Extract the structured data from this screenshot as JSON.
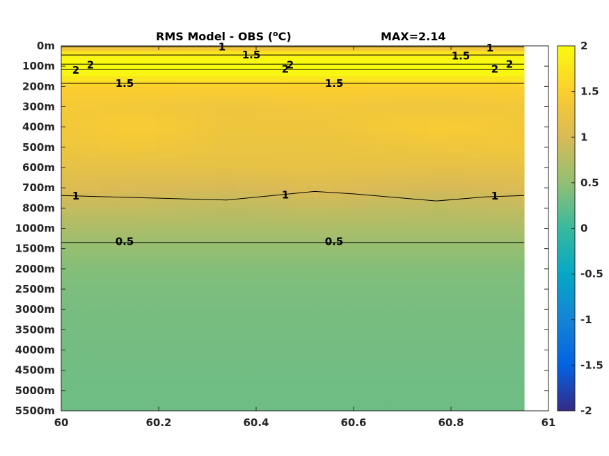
{
  "chart_data": {
    "type": "heatmap",
    "title": "RMS Model - OBS (",
    "title_super": "o",
    "title_unit": "C)",
    "max_label": "MAX=2.14",
    "x_ticks": [
      {
        "value": 60,
        "label": "60"
      },
      {
        "value": 60.2,
        "label": "60.2"
      },
      {
        "value": 60.4,
        "label": "60.4"
      },
      {
        "value": 60.6,
        "label": "60.6"
      },
      {
        "value": 60.8,
        "label": "60.8"
      },
      {
        "value": 61,
        "label": "61"
      }
    ],
    "x_range": [
      60,
      61
    ],
    "data_x_extent": [
      60,
      60.95
    ],
    "y_ticks": [
      "0m",
      "100m",
      "200m",
      "300m",
      "400m",
      "500m",
      "600m",
      "700m",
      "800m",
      "1000m",
      "1500m",
      "2000m",
      "2500m",
      "3000m",
      "3500m",
      "4000m",
      "4500m",
      "5000m",
      "5500m"
    ],
    "y_scale": "index",
    "colormap": "parula",
    "colorbar": {
      "range": [
        -2,
        2
      ],
      "ticks": [
        {
          "value": 2,
          "label": "2"
        },
        {
          "value": 1.5,
          "label": "1.5"
        },
        {
          "value": 1,
          "label": "1"
        },
        {
          "value": 0.5,
          "label": "0.5"
        },
        {
          "value": 0,
          "label": "0"
        },
        {
          "value": -0.5,
          "label": "-0.5"
        },
        {
          "value": -1,
          "label": "-1"
        },
        {
          "value": -1.5,
          "label": "-1.5"
        },
        {
          "value": -2,
          "label": "-2"
        }
      ]
    },
    "columns_x": [
      60,
      60.15,
      60.35,
      60.52,
      60.78,
      60.95
    ],
    "field_rows": [
      {
        "depth_index": 0,
        "values": [
          1.1,
          1.1,
          1.15,
          1.1,
          1.1,
          1.1
        ]
      },
      {
        "depth_index": 0.3,
        "values": [
          1.7,
          1.7,
          1.7,
          1.7,
          1.7,
          1.7
        ]
      },
      {
        "depth_index": 0.8,
        "values": [
          2.1,
          2.1,
          2.1,
          2.1,
          2.1,
          2.1
        ]
      },
      {
        "depth_index": 1.2,
        "values": [
          2.05,
          2.05,
          2.05,
          2.05,
          2.05,
          2.05
        ]
      },
      {
        "depth_index": 2.0,
        "values": [
          1.5,
          1.5,
          1.5,
          1.5,
          1.5,
          1.5
        ]
      },
      {
        "depth_index": 3.0,
        "values": [
          1.4,
          1.35,
          1.3,
          1.35,
          1.3,
          1.35
        ]
      },
      {
        "depth_index": 4.0,
        "values": [
          1.35,
          1.45,
          1.3,
          1.3,
          1.45,
          1.35
        ]
      },
      {
        "depth_index": 5.0,
        "values": [
          1.3,
          1.35,
          1.25,
          1.25,
          1.3,
          1.35
        ]
      },
      {
        "depth_index": 6.0,
        "values": [
          1.18,
          1.18,
          1.18,
          1.2,
          1.18,
          1.18
        ]
      },
      {
        "depth_index": 7.0,
        "values": [
          1.05,
          1.02,
          0.98,
          1.05,
          0.97,
          1.03
        ]
      },
      {
        "depth_index": 8.0,
        "values": [
          0.85,
          0.85,
          0.8,
          0.85,
          0.8,
          0.85
        ]
      },
      {
        "depth_index": 9.0,
        "values": [
          0.68,
          0.68,
          0.68,
          0.68,
          0.68,
          0.68
        ]
      },
      {
        "depth_index": 10.0,
        "values": [
          0.52,
          0.52,
          0.52,
          0.52,
          0.52,
          0.52
        ]
      },
      {
        "depth_index": 11.0,
        "values": [
          0.42,
          0.42,
          0.42,
          0.42,
          0.42,
          0.42
        ]
      },
      {
        "depth_index": 12.0,
        "values": [
          0.38,
          0.38,
          0.38,
          0.38,
          0.38,
          0.38
        ]
      },
      {
        "depth_index": 13.0,
        "values": [
          0.36,
          0.36,
          0.36,
          0.36,
          0.36,
          0.36
        ]
      },
      {
        "depth_index": 14.0,
        "values": [
          0.34,
          0.34,
          0.34,
          0.34,
          0.34,
          0.34
        ]
      },
      {
        "depth_index": 16.0,
        "values": [
          0.32,
          0.32,
          0.32,
          0.32,
          0.32,
          0.32
        ]
      },
      {
        "depth_index": 18.0,
        "values": [
          0.3,
          0.3,
          0.3,
          0.3,
          0.3,
          0.3
        ]
      }
    ],
    "contours": [
      {
        "level": 1,
        "label": "1",
        "points": [
          [
            60,
            0.05
          ],
          [
            60.95,
            0.05
          ]
        ],
        "label_positions": [
          [
            60.33,
            0.05
          ],
          [
            60.88,
            0.1
          ]
        ]
      },
      {
        "level": 1.5,
        "label": "1.5",
        "points": [
          [
            60,
            0.45
          ],
          [
            60.95,
            0.45
          ]
        ],
        "label_positions": [
          [
            60.39,
            0.45
          ],
          [
            60.82,
            0.5
          ]
        ]
      },
      {
        "level": 2,
        "label": "2",
        "points": [
          [
            60,
            0.9
          ],
          [
            60.95,
            0.9
          ]
        ],
        "label_positions": [
          [
            60.06,
            0.95
          ],
          [
            60.92,
            0.9
          ]
        ]
      },
      {
        "level": 2,
        "label": "2",
        "points": [
          [
            60,
            1.15
          ],
          [
            60.95,
            1.15
          ]
        ],
        "label_positions": [
          [
            60.03,
            1.2
          ],
          [
            60.47,
            0.95
          ],
          [
            60.46,
            1.15
          ],
          [
            60.89,
            1.15
          ]
        ]
      },
      {
        "level": 1.5,
        "label": "1.5",
        "points": [
          [
            60,
            1.85
          ],
          [
            60.95,
            1.85
          ]
        ],
        "label_positions": [
          [
            60.13,
            1.85
          ],
          [
            60.56,
            1.85
          ]
        ]
      },
      {
        "level": 1,
        "label": "1",
        "points": [
          [
            60,
            7.38
          ],
          [
            60.18,
            7.5
          ],
          [
            60.34,
            7.6
          ],
          [
            60.52,
            7.18
          ],
          [
            60.6,
            7.3
          ],
          [
            60.77,
            7.65
          ],
          [
            60.87,
            7.45
          ],
          [
            60.95,
            7.38
          ]
        ],
        "label_positions": [
          [
            60.03,
            7.4
          ],
          [
            60.46,
            7.35
          ],
          [
            60.89,
            7.4
          ]
        ]
      },
      {
        "level": 0.5,
        "label": "0.5",
        "points": [
          [
            60,
            9.7
          ],
          [
            60.95,
            9.7
          ]
        ],
        "label_positions": [
          [
            60.13,
            9.65
          ],
          [
            60.56,
            9.65
          ]
        ]
      }
    ]
  }
}
